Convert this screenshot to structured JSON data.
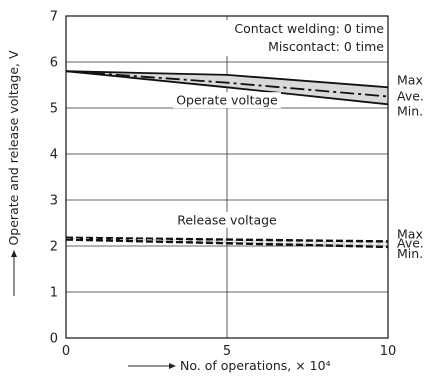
{
  "chart_data": {
    "type": "line",
    "xlabel": "No. of operations, × 10⁴",
    "ylabel": "Operate and release voltage, V",
    "xlim": [
      0,
      10
    ],
    "ylim": [
      0,
      7
    ],
    "x_ticks": [
      "0",
      "5",
      "10"
    ],
    "y_ticks": [
      "0",
      "1",
      "2",
      "3",
      "4",
      "5",
      "6",
      "7"
    ],
    "grid": true,
    "annotations": {
      "note_welding": "Contact welding: 0 time",
      "note_miscontact": "Miscontact: 0 time",
      "operate_label": "Operate voltage",
      "release_label": "Release voltage"
    },
    "groups": [
      {
        "label_key": "operate",
        "series": [
          {
            "name": "Max.",
            "style": "solid",
            "x": [
              0,
              5,
              10
            ],
            "y": [
              5.8,
              5.72,
              5.45
            ]
          },
          {
            "name": "Ave.",
            "style": "dashdot",
            "x": [
              0,
              5,
              10
            ],
            "y": [
              5.8,
              5.55,
              5.25
            ]
          },
          {
            "name": "Min.",
            "style": "solid",
            "x": [
              0,
              5,
              10
            ],
            "y": [
              5.8,
              5.45,
              5.08
            ]
          }
        ]
      },
      {
        "label_key": "release",
        "series": [
          {
            "name": "Max.",
            "style": "dashed",
            "x": [
              0,
              5,
              10
            ],
            "y": [
              2.18,
              2.14,
              2.1
            ]
          },
          {
            "name": "Ave.",
            "style": "dashed-white",
            "x": [
              0,
              5,
              10
            ],
            "y": [
              2.16,
              2.1,
              2.05
            ]
          },
          {
            "name": "Min.",
            "style": "dashed",
            "x": [
              0,
              5,
              10
            ],
            "y": [
              2.14,
              2.06,
              1.98
            ]
          }
        ]
      }
    ],
    "colors": {
      "band_fill": "#d9d9d9",
      "line": "#111111"
    }
  }
}
